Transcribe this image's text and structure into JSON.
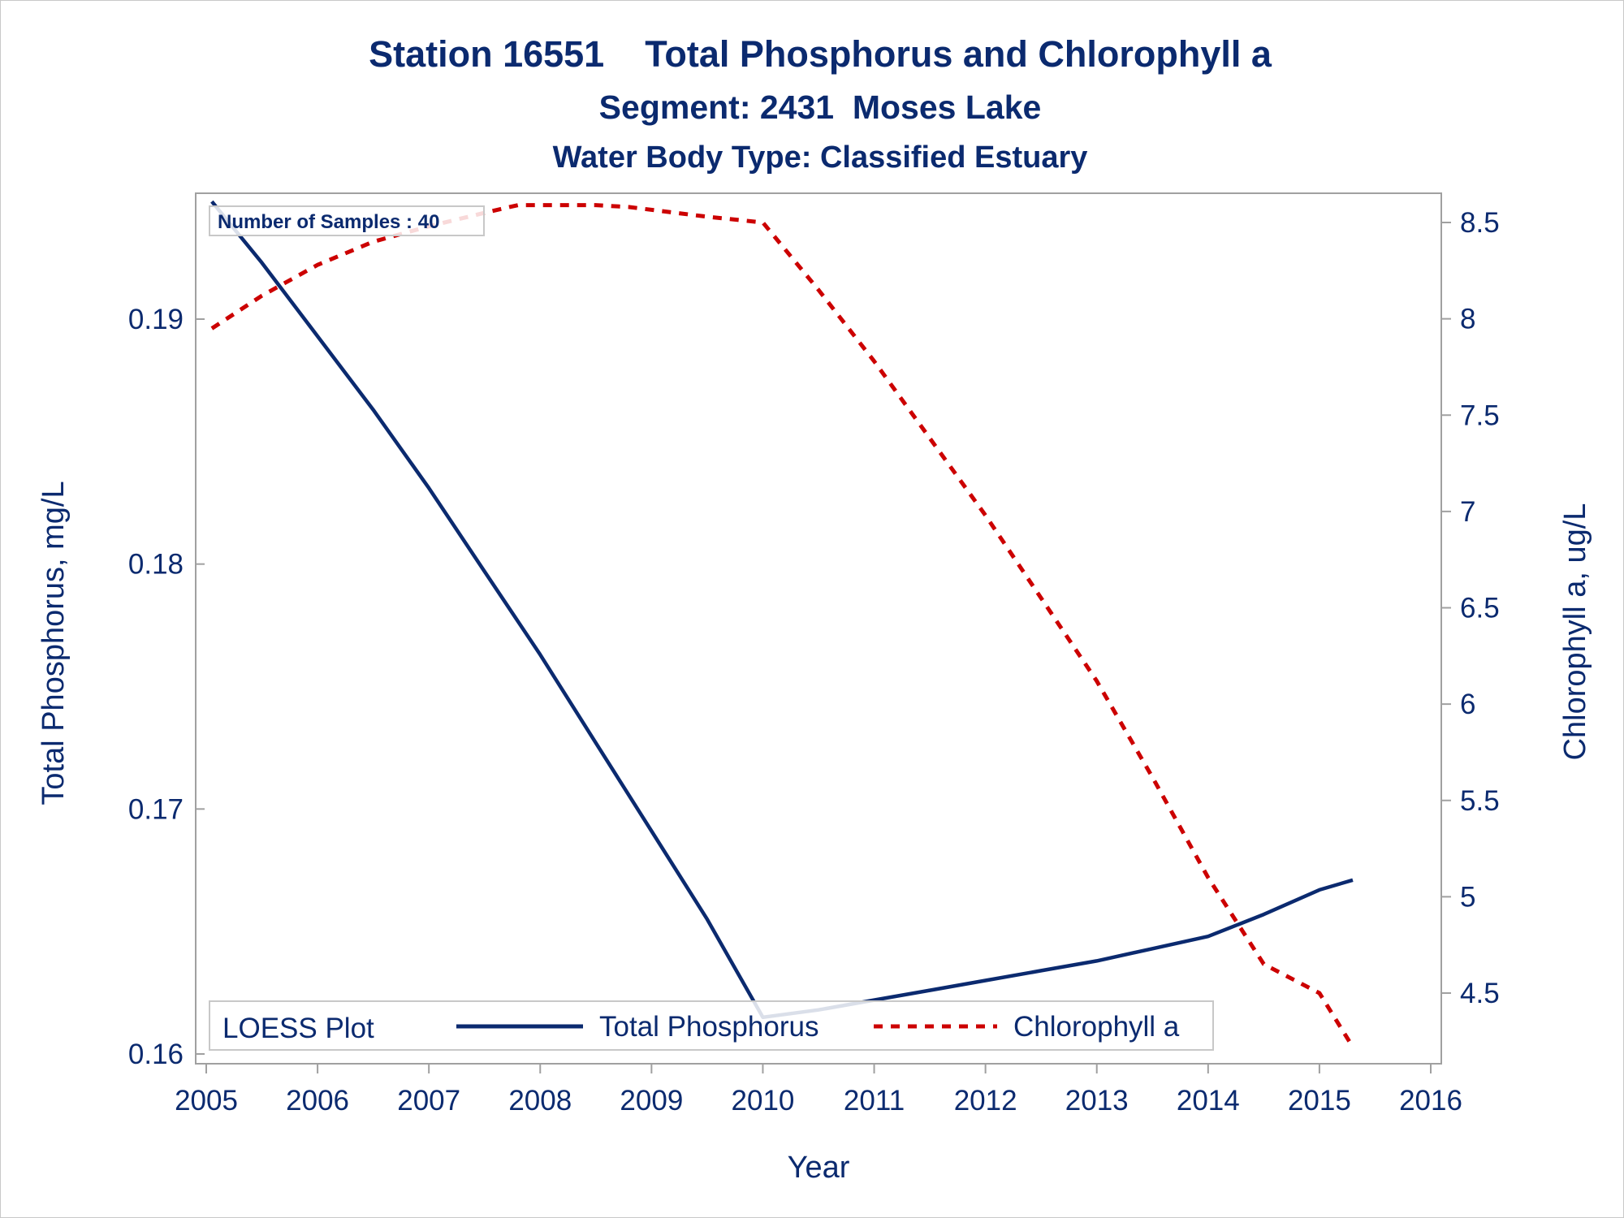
{
  "chart_data": {
    "type": "line",
    "title": "Station 16551    Total Phosphorus and Chlorophyll a",
    "subtitle": "Segment: 2431  Moses Lake",
    "subtitle2": "Water Body Type: Classified Estuary",
    "xlabel": "Year",
    "ylabel_left": "Total Phosphorus, mg/L",
    "ylabel_right": "Chlorophyll a, ug/L",
    "xlim": [
      2005,
      2016
    ],
    "xticks": [
      "2005",
      "2006",
      "2007",
      "2008",
      "2009",
      "2010",
      "2011",
      "2012",
      "2013",
      "2014",
      "2015",
      "2016"
    ],
    "ylim_left": [
      0.16,
      0.195
    ],
    "yticks_left": [
      "0.16",
      "0.17",
      "0.18",
      "0.19"
    ],
    "ylim_right": [
      4.25,
      8.6
    ],
    "yticks_right": [
      "4.5",
      "5",
      "5.5",
      "6",
      "6.5",
      "7",
      "7.5",
      "8",
      "8.5"
    ],
    "annotation": "Number of Samples : 40",
    "legend": {
      "title": "LOESS Plot",
      "placement": "bottom-inside",
      "entries": [
        "Total Phosphorus",
        "Chlorophyll a"
      ]
    },
    "grid": false,
    "series": [
      {
        "name": "Total Phosphorus",
        "axis": "left",
        "color": "#0b2a6f",
        "style": "solid",
        "x": [
          2005.05,
          2005.5,
          2006.0,
          2006.5,
          2007.0,
          2007.5,
          2008.0,
          2008.5,
          2009.0,
          2009.5,
          2010.0,
          2010.5,
          2011.0,
          2011.5,
          2012.0,
          2012.5,
          2013.0,
          2013.5,
          2014.0,
          2014.5,
          2015.0,
          2015.3
        ],
        "y": [
          0.1948,
          0.1923,
          0.1893,
          0.1863,
          0.1831,
          0.1797,
          0.1763,
          0.1727,
          0.1691,
          0.1655,
          0.1615,
          0.1618,
          0.1622,
          0.1626,
          0.163,
          0.1634,
          0.1638,
          0.1643,
          0.1648,
          0.1657,
          0.1667,
          0.1671
        ]
      },
      {
        "name": "Chlorophyll a",
        "axis": "right",
        "color": "#cc0000",
        "style": "dashed",
        "x": [
          2005.05,
          2005.5,
          2006.0,
          2006.5,
          2007.0,
          2007.5,
          2007.8,
          2008.5,
          2008.8,
          2009.5,
          2010.0,
          2010.5,
          2011.0,
          2011.5,
          2012.0,
          2012.5,
          2013.0,
          2013.5,
          2014.0,
          2014.5,
          2015.0,
          2015.3
        ],
        "y": [
          7.95,
          8.12,
          8.28,
          8.4,
          8.48,
          8.55,
          8.59,
          8.59,
          8.58,
          8.53,
          8.5,
          8.15,
          7.78,
          7.38,
          6.98,
          6.55,
          6.12,
          5.62,
          5.1,
          4.65,
          4.5,
          4.22
        ]
      }
    ]
  }
}
